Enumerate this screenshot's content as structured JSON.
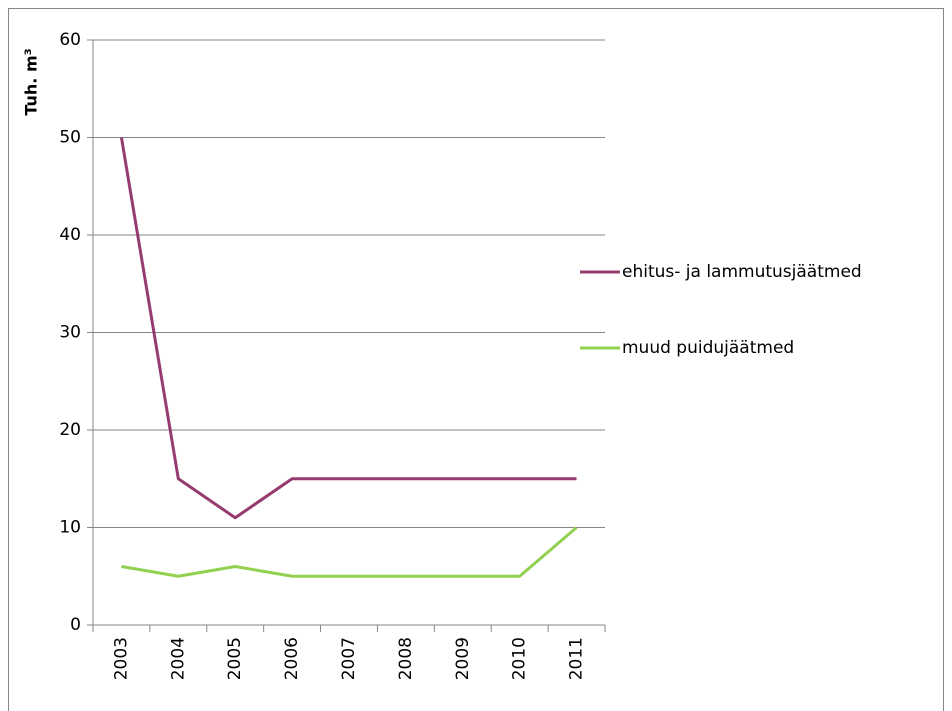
{
  "chart_data": {
    "type": "line",
    "y_label": "Tuh. m³",
    "categories": [
      "2003",
      "2004",
      "2005",
      "2006",
      "2007",
      "2008",
      "2009",
      "2010",
      "2011"
    ],
    "series": [
      {
        "name": "ehitus- ja lammutusjäätmed",
        "color": "#953b6f",
        "values": [
          50,
          15,
          11,
          15,
          15,
          15,
          15,
          15,
          15
        ]
      },
      {
        "name": "muud puidujäätmed",
        "color": "#92d050",
        "values": [
          6,
          5,
          6,
          5,
          5,
          5,
          5,
          5,
          10
        ]
      }
    ],
    "ylim": [
      0,
      60
    ],
    "yticks": [
      0,
      10,
      20,
      30,
      40,
      50,
      60
    ],
    "grid": true,
    "legend": "right"
  }
}
